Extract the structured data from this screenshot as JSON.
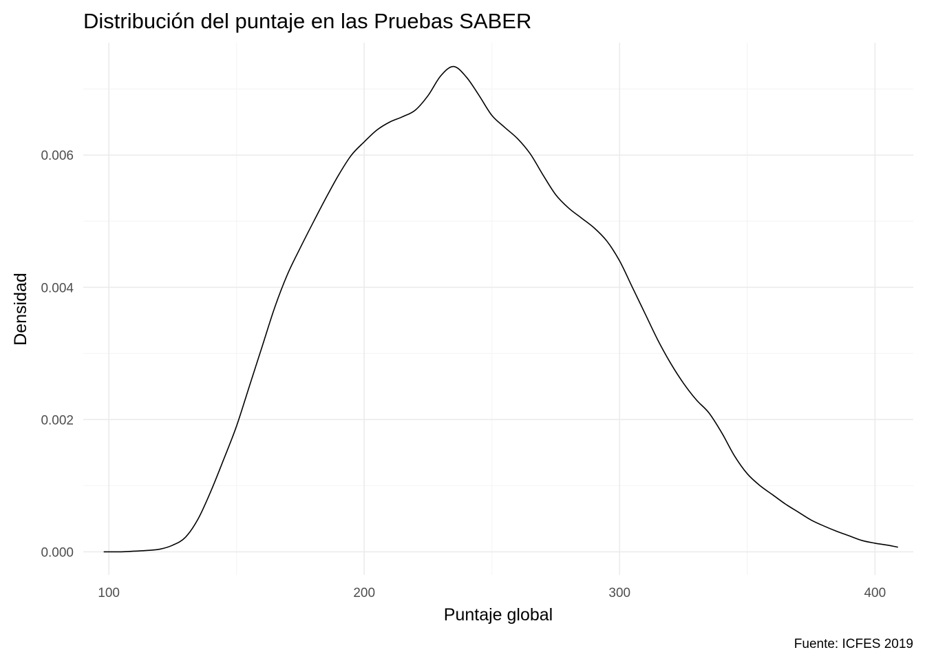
{
  "chart_data": {
    "type": "line",
    "title": "Distribución del puntaje en las Pruebas SABER",
    "xlabel": "Puntaje global",
    "ylabel": "Densidad",
    "caption": "Fuente: ICFES 2019",
    "xlim": [
      90,
      415
    ],
    "ylim": [
      -0.00035,
      0.0077
    ],
    "x_ticks": [
      100,
      200,
      300,
      400
    ],
    "x_tick_labels": [
      "100",
      "200",
      "300",
      "400"
    ],
    "x_minor_ticks": [
      150,
      250,
      350
    ],
    "y_ticks": [
      0,
      0.002,
      0.004,
      0.006
    ],
    "y_tick_labels": [
      "0.000",
      "0.002",
      "0.004",
      "0.006"
    ],
    "y_minor_ticks": [
      0.001,
      0.003,
      0.005,
      0.007
    ],
    "grid": true,
    "legend": "none",
    "line_color": "#000000",
    "series": [
      {
        "x": [
          98,
          105,
          110,
          115,
          120,
          125,
          130,
          135,
          140,
          145,
          150,
          155,
          160,
          165,
          170,
          175,
          180,
          185,
          190,
          195,
          200,
          205,
          210,
          215,
          220,
          225,
          230,
          235,
          240,
          245,
          250,
          255,
          260,
          265,
          270,
          275,
          280,
          285,
          290,
          295,
          300,
          305,
          310,
          315,
          320,
          325,
          330,
          335,
          340,
          345,
          350,
          355,
          360,
          365,
          370,
          375,
          380,
          385,
          390,
          395,
          400,
          405,
          409
        ],
        "y": [
          0.0,
          0.0,
          1e-05,
          2e-05,
          4e-05,
          0.0001,
          0.00022,
          0.0005,
          0.00092,
          0.0014,
          0.0019,
          0.0025,
          0.0031,
          0.0037,
          0.0042,
          0.0046,
          0.00498,
          0.00535,
          0.0057,
          0.006,
          0.0062,
          0.00638,
          0.0065,
          0.00658,
          0.00668,
          0.0069,
          0.0072,
          0.00734,
          0.00718,
          0.0069,
          0.0066,
          0.00642,
          0.00625,
          0.00602,
          0.0057,
          0.0054,
          0.0052,
          0.00505,
          0.0049,
          0.0047,
          0.0044,
          0.004,
          0.0036,
          0.0032,
          0.00285,
          0.00255,
          0.0023,
          0.0021,
          0.0018,
          0.00145,
          0.00118,
          0.001,
          0.00086,
          0.00072,
          0.0006,
          0.00048,
          0.00039,
          0.00031,
          0.00024,
          0.00017,
          0.00013,
          0.0001,
          7e-05
        ]
      }
    ]
  }
}
